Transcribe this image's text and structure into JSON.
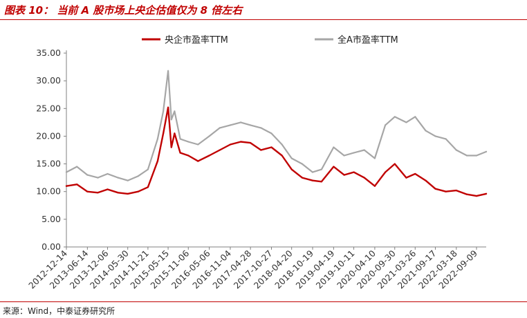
{
  "header": {
    "title": "图表 10：  当前 A 股市场上央企估值仅为 8 倍左右",
    "accent_color": "#c00000"
  },
  "source": {
    "text": "来源：Wind，中泰证券研究所"
  },
  "chart_data": {
    "type": "line",
    "title": "图表 10：  当前 A 股市场上央企估值仅为 8 倍左右",
    "xlabel": "",
    "ylabel": "",
    "ylim": [
      0,
      35
    ],
    "yticks": [
      "0.00",
      "5.00",
      "10.00",
      "15.00",
      "20.00",
      "25.00",
      "30.00",
      "35.00"
    ],
    "grid": false,
    "legend_position": "top-center",
    "x": [
      "2012-12-14",
      "2013-03-15",
      "2013-06-14",
      "2013-09-13",
      "2013-12-06",
      "2014-03-07",
      "2014-05-30",
      "2014-08-29",
      "2014-11-21",
      "2015-02-13",
      "2015-04-03",
      "2015-05-15",
      "2015-06-12",
      "2015-07-10",
      "2015-08-28",
      "2015-11-06",
      "2016-01-29",
      "2016-05-06",
      "2016-08-05",
      "2016-11-04",
      "2017-02-03",
      "2017-04-28",
      "2017-07-28",
      "2017-10-27",
      "2018-01-26",
      "2018-04-20",
      "2018-07-20",
      "2018-10-19",
      "2019-01-04",
      "2019-04-19",
      "2019-07-19",
      "2019-10-11",
      "2020-01-10",
      "2020-04-10",
      "2020-07-10",
      "2020-09-30",
      "2021-01-08",
      "2021-03-26",
      "2021-06-25",
      "2021-09-17",
      "2021-12-17",
      "2022-03-18",
      "2022-06-17",
      "2022-09-09",
      "2022-12-02"
    ],
    "xtick_labels": [
      "2012-12-14",
      "2013-06-14",
      "2013-12-06",
      "2014-05-30",
      "2014-11-21",
      "2015-05-15",
      "2015-11-06",
      "2016-05-06",
      "2016-11-04",
      "2017-04-28",
      "2017-10-27",
      "2018-04-20",
      "2018-10-19",
      "2019-04-19",
      "2019-10-11",
      "2020-04-10",
      "2020-09-30",
      "2021-03-26",
      "2021-09-17",
      "2022-03-18",
      "2022-09-09"
    ],
    "series": [
      {
        "name": "央企市盈率TTM",
        "color": "#c00000",
        "values": [
          11.0,
          11.3,
          10.0,
          9.8,
          10.4,
          9.8,
          9.6,
          10.0,
          10.8,
          15.5,
          20.5,
          25.2,
          18.0,
          20.5,
          17.0,
          16.5,
          15.5,
          16.5,
          17.5,
          18.5,
          19.0,
          18.8,
          17.5,
          18.0,
          16.5,
          14.0,
          12.5,
          12.0,
          11.8,
          14.5,
          13.0,
          13.5,
          12.5,
          11.0,
          13.5,
          15.0,
          12.5,
          13.2,
          12.0,
          10.5,
          10.0,
          10.2,
          9.5,
          9.2,
          9.6
        ]
      },
      {
        "name": "全A市盈率TTM",
        "color": "#a6a6a6",
        "values": [
          13.5,
          14.5,
          13.0,
          12.5,
          13.2,
          12.5,
          12.0,
          12.8,
          14.0,
          19.5,
          24.5,
          31.8,
          23.0,
          24.5,
          19.5,
          19.0,
          18.5,
          20.0,
          21.5,
          22.0,
          22.5,
          22.0,
          21.5,
          20.5,
          18.5,
          16.0,
          15.0,
          13.5,
          14.0,
          18.0,
          16.5,
          17.0,
          17.5,
          16.0,
          22.0,
          23.5,
          22.5,
          23.5,
          21.0,
          20.0,
          19.5,
          17.5,
          16.5,
          16.5,
          17.2
        ]
      }
    ]
  }
}
